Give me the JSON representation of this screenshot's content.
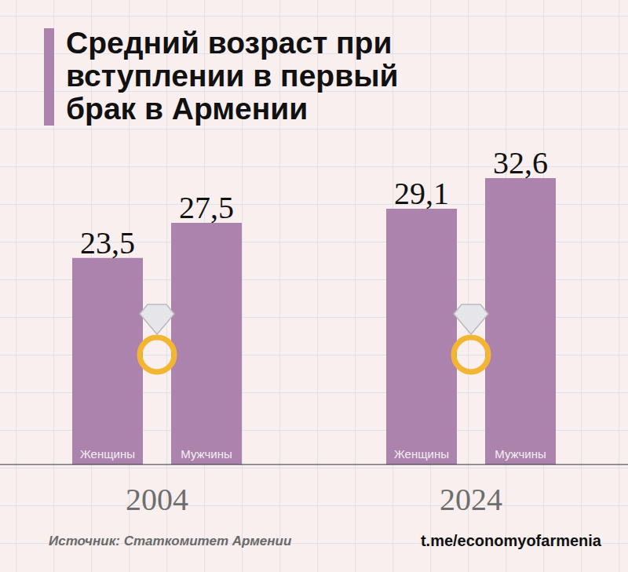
{
  "chart_data": {
    "type": "bar",
    "title": "Средний возраст при вступлении в первый брак в Армении",
    "categories": [
      "2004",
      "2024"
    ],
    "series": [
      {
        "name": "Женщины",
        "color": "#ac83ad",
        "values": [
          23.5,
          29.1
        ],
        "value_labels": [
          "23,5",
          "29,1"
        ]
      },
      {
        "name": "Мужчины",
        "color": "#ac83ad",
        "values": [
          27.5,
          32.6
        ],
        "value_labels": [
          "27,5",
          "32,6"
        ]
      }
    ],
    "ylim": [
      0,
      40
    ],
    "data_labels": true,
    "tick_labels": "x",
    "annotations": [
      "Источник: Статкомитет Армении",
      "t.me/economyofarmenia"
    ]
  }
}
